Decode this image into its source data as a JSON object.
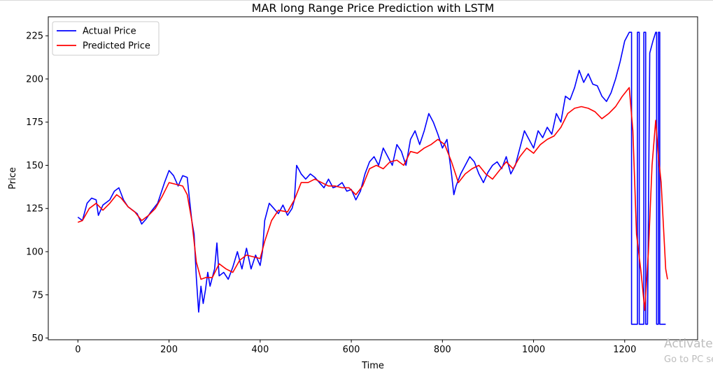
{
  "chart_data": {
    "type": "line",
    "title": "MAR long Range Price Prediction with LSTM",
    "xlabel": "Time",
    "ylabel": "Price",
    "xlim": [
      -65,
      1360
    ],
    "ylim": [
      49,
      236
    ],
    "x_ticks": [
      0,
      200,
      400,
      600,
      800,
      1000,
      1200
    ],
    "y_ticks": [
      50,
      75,
      100,
      125,
      150,
      175,
      200,
      225
    ],
    "legend_position": "top-left",
    "grid": false,
    "series": [
      {
        "name": "Actual Price",
        "color": "#0000ff",
        "points": [
          [
            0,
            120
          ],
          [
            10,
            118
          ],
          [
            20,
            128
          ],
          [
            30,
            131
          ],
          [
            40,
            130
          ],
          [
            45,
            121
          ],
          [
            55,
            127
          ],
          [
            70,
            130
          ],
          [
            80,
            135
          ],
          [
            90,
            137
          ],
          [
            100,
            130
          ],
          [
            110,
            126
          ],
          [
            120,
            124
          ],
          [
            130,
            122
          ],
          [
            140,
            116
          ],
          [
            150,
            119
          ],
          [
            160,
            123
          ],
          [
            175,
            128
          ],
          [
            190,
            140
          ],
          [
            200,
            147
          ],
          [
            210,
            144
          ],
          [
            220,
            138
          ],
          [
            230,
            144
          ],
          [
            240,
            143
          ],
          [
            245,
            130
          ],
          [
            250,
            118
          ],
          [
            255,
            110
          ],
          [
            260,
            85
          ],
          [
            265,
            65
          ],
          [
            270,
            80
          ],
          [
            275,
            70
          ],
          [
            280,
            78
          ],
          [
            285,
            88
          ],
          [
            290,
            80
          ],
          [
            295,
            85
          ],
          [
            300,
            90
          ],
          [
            305,
            105
          ],
          [
            310,
            86
          ],
          [
            320,
            88
          ],
          [
            330,
            84
          ],
          [
            340,
            91
          ],
          [
            350,
            100
          ],
          [
            355,
            95
          ],
          [
            360,
            90
          ],
          [
            370,
            102
          ],
          [
            380,
            90
          ],
          [
            390,
            98
          ],
          [
            400,
            92
          ],
          [
            405,
            100
          ],
          [
            410,
            118
          ],
          [
            420,
            128
          ],
          [
            430,
            125
          ],
          [
            440,
            122
          ],
          [
            450,
            127
          ],
          [
            460,
            121
          ],
          [
            470,
            125
          ],
          [
            475,
            130
          ],
          [
            480,
            150
          ],
          [
            490,
            145
          ],
          [
            500,
            142
          ],
          [
            510,
            145
          ],
          [
            520,
            143
          ],
          [
            530,
            140
          ],
          [
            540,
            137
          ],
          [
            550,
            142
          ],
          [
            560,
            137
          ],
          [
            570,
            138
          ],
          [
            580,
            140
          ],
          [
            590,
            135
          ],
          [
            600,
            136
          ],
          [
            610,
            130
          ],
          [
            620,
            135
          ],
          [
            630,
            145
          ],
          [
            640,
            152
          ],
          [
            650,
            155
          ],
          [
            660,
            150
          ],
          [
            670,
            160
          ],
          [
            680,
            155
          ],
          [
            690,
            150
          ],
          [
            700,
            162
          ],
          [
            710,
            158
          ],
          [
            720,
            150
          ],
          [
            730,
            165
          ],
          [
            740,
            170
          ],
          [
            750,
            162
          ],
          [
            760,
            170
          ],
          [
            770,
            180
          ],
          [
            780,
            175
          ],
          [
            790,
            168
          ],
          [
            800,
            160
          ],
          [
            810,
            165
          ],
          [
            820,
            145
          ],
          [
            825,
            133
          ],
          [
            830,
            138
          ],
          [
            840,
            145
          ],
          [
            850,
            150
          ],
          [
            860,
            155
          ],
          [
            870,
            152
          ],
          [
            880,
            145
          ],
          [
            890,
            140
          ],
          [
            900,
            146
          ],
          [
            910,
            150
          ],
          [
            920,
            152
          ],
          [
            930,
            148
          ],
          [
            940,
            155
          ],
          [
            950,
            145
          ],
          [
            960,
            150
          ],
          [
            970,
            160
          ],
          [
            980,
            170
          ],
          [
            990,
            165
          ],
          [
            1000,
            160
          ],
          [
            1010,
            170
          ],
          [
            1020,
            166
          ],
          [
            1030,
            172
          ],
          [
            1040,
            168
          ],
          [
            1050,
            180
          ],
          [
            1060,
            175
          ],
          [
            1070,
            190
          ],
          [
            1080,
            188
          ],
          [
            1090,
            195
          ],
          [
            1100,
            205
          ],
          [
            1110,
            198
          ],
          [
            1120,
            203
          ],
          [
            1130,
            197
          ],
          [
            1140,
            196
          ],
          [
            1150,
            190
          ],
          [
            1160,
            187
          ],
          [
            1170,
            192
          ],
          [
            1180,
            200
          ],
          [
            1190,
            210
          ],
          [
            1200,
            222
          ],
          [
            1210,
            227
          ],
          [
            1215,
            227
          ],
          [
            1215,
            58
          ],
          [
            1228,
            58
          ],
          [
            1228,
            227
          ],
          [
            1232,
            227
          ],
          [
            1232,
            58
          ],
          [
            1242,
            58
          ],
          [
            1242,
            227
          ],
          [
            1246,
            227
          ],
          [
            1246,
            58
          ],
          [
            1250,
            58
          ],
          [
            1255,
            215
          ],
          [
            1262,
            222
          ],
          [
            1268,
            227
          ],
          [
            1270,
            227
          ],
          [
            1270,
            58
          ],
          [
            1274,
            58
          ],
          [
            1274,
            227
          ],
          [
            1277,
            227
          ],
          [
            1277,
            58
          ],
          [
            1290,
            58
          ]
        ]
      },
      {
        "name": "Predicted Price",
        "color": "#ff0000",
        "points": [
          [
            0,
            117
          ],
          [
            10,
            118
          ],
          [
            25,
            125
          ],
          [
            40,
            128
          ],
          [
            55,
            124
          ],
          [
            70,
            128
          ],
          [
            85,
            133
          ],
          [
            95,
            131
          ],
          [
            110,
            126
          ],
          [
            125,
            123
          ],
          [
            140,
            118
          ],
          [
            155,
            121
          ],
          [
            170,
            125
          ],
          [
            185,
            132
          ],
          [
            200,
            140
          ],
          [
            215,
            139
          ],
          [
            230,
            138
          ],
          [
            240,
            133
          ],
          [
            250,
            118
          ],
          [
            260,
            94
          ],
          [
            270,
            84
          ],
          [
            280,
            85
          ],
          [
            295,
            85
          ],
          [
            310,
            93
          ],
          [
            325,
            90
          ],
          [
            340,
            88
          ],
          [
            355,
            95
          ],
          [
            370,
            98
          ],
          [
            385,
            97
          ],
          [
            400,
            96
          ],
          [
            410,
            106
          ],
          [
            425,
            118
          ],
          [
            440,
            124
          ],
          [
            460,
            123
          ],
          [
            475,
            130
          ],
          [
            490,
            140
          ],
          [
            505,
            140
          ],
          [
            520,
            142
          ],
          [
            535,
            140
          ],
          [
            550,
            138
          ],
          [
            565,
            138
          ],
          [
            580,
            137
          ],
          [
            595,
            137
          ],
          [
            610,
            133
          ],
          [
            625,
            138
          ],
          [
            640,
            148
          ],
          [
            655,
            150
          ],
          [
            670,
            148
          ],
          [
            685,
            152
          ],
          [
            700,
            153
          ],
          [
            715,
            150
          ],
          [
            730,
            158
          ],
          [
            745,
            157
          ],
          [
            760,
            160
          ],
          [
            775,
            162
          ],
          [
            790,
            165
          ],
          [
            805,
            162
          ],
          [
            820,
            152
          ],
          [
            835,
            140
          ],
          [
            850,
            145
          ],
          [
            865,
            148
          ],
          [
            880,
            150
          ],
          [
            895,
            145
          ],
          [
            910,
            142
          ],
          [
            925,
            147
          ],
          [
            940,
            152
          ],
          [
            955,
            148
          ],
          [
            970,
            155
          ],
          [
            985,
            160
          ],
          [
            1000,
            157
          ],
          [
            1015,
            162
          ],
          [
            1030,
            165
          ],
          [
            1045,
            167
          ],
          [
            1060,
            172
          ],
          [
            1075,
            180
          ],
          [
            1090,
            183
          ],
          [
            1105,
            184
          ],
          [
            1120,
            183
          ],
          [
            1135,
            181
          ],
          [
            1150,
            177
          ],
          [
            1165,
            180
          ],
          [
            1180,
            184
          ],
          [
            1195,
            190
          ],
          [
            1210,
            195
          ],
          [
            1218,
            170
          ],
          [
            1226,
            110
          ],
          [
            1236,
            88
          ],
          [
            1244,
            66
          ],
          [
            1252,
            100
          ],
          [
            1260,
            150
          ],
          [
            1268,
            176
          ],
          [
            1274,
            155
          ],
          [
            1280,
            140
          ],
          [
            1286,
            110
          ],
          [
            1290,
            90
          ],
          [
            1294,
            84
          ]
        ]
      }
    ]
  },
  "watermark": {
    "line1": "Activate",
    "line2": "Go to PC se"
  }
}
